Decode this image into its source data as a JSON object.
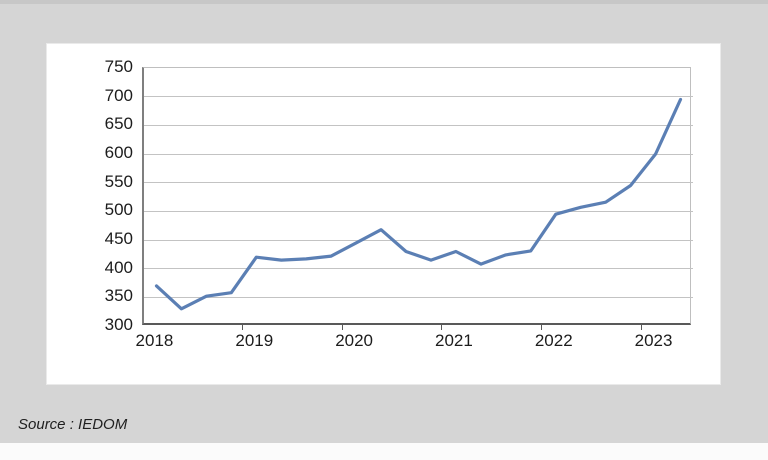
{
  "source_note": "Source : IEDOM",
  "colors": {
    "page_bg": "#d5d5d5",
    "panel_bg": "#ffffff",
    "line": "#5b7fb4",
    "grid": "#c3c3c3",
    "axis_dark": "#595959",
    "axis_left": "#7f7f7f",
    "label_text": "#1c1c1c"
  },
  "chart_data": {
    "type": "line",
    "title": "",
    "xlabel": "",
    "ylabel": "",
    "ylim": [
      300,
      750
    ],
    "y_ticks": [
      300,
      350,
      400,
      450,
      500,
      550,
      600,
      650,
      700,
      750
    ],
    "x_tick_labels": [
      "2018",
      "2019",
      "2020",
      "2021",
      "2022",
      "2023"
    ],
    "points_per_year": 4,
    "grid": "horizontal",
    "legend_position": "none",
    "x": [
      "2018Q1",
      "2018Q2",
      "2018Q3",
      "2018Q4",
      "2019Q1",
      "2019Q2",
      "2019Q3",
      "2019Q4",
      "2020Q1",
      "2020Q2",
      "2020Q3",
      "2020Q4",
      "2021Q1",
      "2021Q2",
      "2021Q3",
      "2021Q4",
      "2022Q1",
      "2022Q2",
      "2022Q3",
      "2022Q4",
      "2023Q1",
      "2023Q2"
    ],
    "series": [
      {
        "name": "series-1",
        "color": "#5b7fb4",
        "values": [
          370,
          330,
          352,
          358,
          420,
          415,
          417,
          422,
          445,
          468,
          430,
          415,
          430,
          408,
          424,
          431,
          495,
          507,
          516,
          545,
          600,
          695
        ]
      }
    ]
  }
}
